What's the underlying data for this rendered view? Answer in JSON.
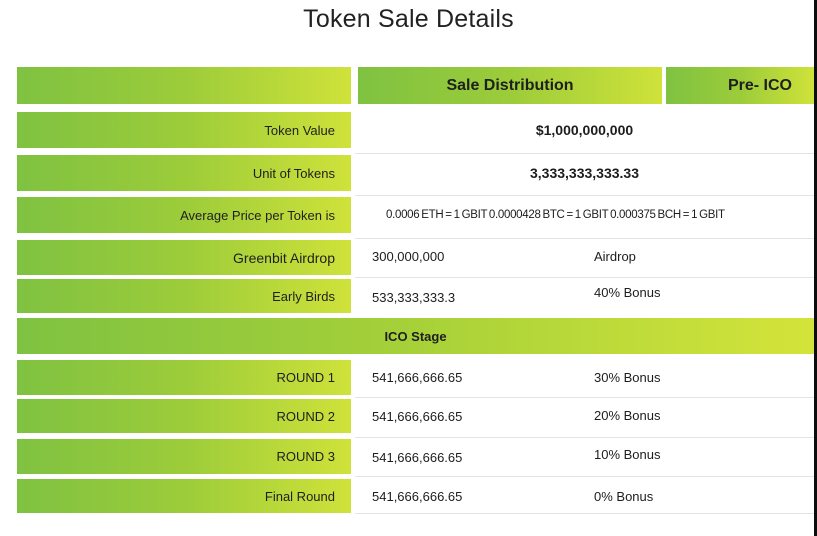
{
  "title": "Token Sale Details",
  "header": {
    "sale_distribution": "Sale Distribution",
    "pre_ico": "Pre- ICO"
  },
  "rows": [
    {
      "label": "Token Value",
      "value": "$1,000,000,000"
    },
    {
      "label": "Unit of Tokens",
      "value": "3,333,333,333.33"
    },
    {
      "label": "Average Price per Token is",
      "value": "0.0006 ETH = 1 GBIT  0.0000428 BTC = 1 GBIT  0.000375 BCH = 1 GBIT"
    },
    {
      "label": "Greenbit Airdrop",
      "amount": "300,000,000",
      "bonus": "Airdrop"
    },
    {
      "label": "Early Birds",
      "amount": "533,333,333.3",
      "bonus": "40% Bonus"
    }
  ],
  "ico_stage": "ICO Stage",
  "rounds": [
    {
      "label": "ROUND 1",
      "amount": "541,666,666.65",
      "bonus": "30% Bonus"
    },
    {
      "label": "ROUND 2",
      "amount": "541,666,666.65",
      "bonus": "20% Bonus"
    },
    {
      "label": "ROUND 3",
      "amount": "541,666,666.65",
      "bonus": "10% Bonus"
    },
    {
      "label": "Final Round",
      "amount": "541,666,666.65",
      "bonus": "0% Bonus"
    }
  ]
}
